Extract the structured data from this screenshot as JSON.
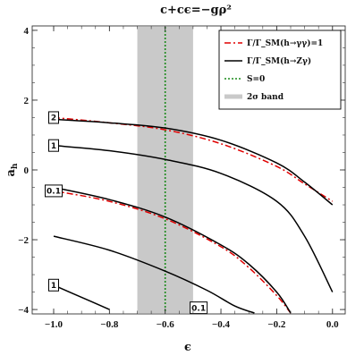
{
  "chart_data": {
    "type": "line",
    "title": "c+cϵ=−gρ²",
    "xlabel": "ϵ",
    "ylabel": "a_h",
    "xlim": [
      -1.0,
      0.02
    ],
    "ylim": [
      -4.1,
      4.1
    ],
    "xticks": [
      -1.0,
      -0.8,
      -0.6,
      -0.4,
      -0.2,
      0.0
    ],
    "xtick_labels": [
      "−1.0",
      "−0.8",
      "−0.6",
      "−0.4",
      "−0.2",
      "0.0"
    ],
    "yticks": [
      -4,
      -2,
      0,
      2,
      4
    ],
    "ytick_labels": [
      "−4",
      "−2",
      "0",
      "2",
      "4"
    ],
    "band": {
      "x0": -0.7,
      "x1": -0.5,
      "color": "#c9c9c9"
    },
    "vertical_line": {
      "x": -0.6,
      "color": "#1a8a1a",
      "style": "dotted"
    },
    "legend": {
      "placement": "top-right",
      "entries": [
        {
          "label": "Γ/Γ_SM(h→γγ)=1",
          "style": "dashdot",
          "color": "#e00000"
        },
        {
          "label": "Γ/Γ_SM(h→Zγ)",
          "style": "solid",
          "color": "#000000"
        },
        {
          "label": "S=0",
          "style": "dotted",
          "color": "#1a8a1a"
        },
        {
          "label": "2σ band",
          "style": "band",
          "color": "#c9c9c9"
        }
      ]
    },
    "series": [
      {
        "style": "dashdot",
        "color": "#e00000",
        "x": [
          -1.0,
          -0.8,
          -0.6,
          -0.4,
          -0.2,
          -0.1,
          0.0
        ],
        "y": [
          1.5,
          1.35,
          1.15,
          0.75,
          0.1,
          -0.4,
          -0.9
        ]
      },
      {
        "style": "dashdot",
        "color": "#e00000",
        "x": [
          -1.0,
          -0.8,
          -0.6,
          -0.4,
          -0.3,
          -0.2,
          -0.15
        ],
        "y": [
          -0.6,
          -0.9,
          -1.4,
          -2.2,
          -2.8,
          -3.6,
          -4.1
        ]
      },
      {
        "style": "solid",
        "color": "#000000",
        "x": [
          -1.0,
          -0.8,
          -0.6,
          -0.4,
          -0.2,
          -0.1,
          0.0
        ],
        "y": [
          1.45,
          1.35,
          1.2,
          0.85,
          0.2,
          -0.35,
          -1.0
        ]
      },
      {
        "style": "solid",
        "color": "#000000",
        "x": [
          -1.0,
          -0.8,
          -0.6,
          -0.4,
          -0.2,
          -0.1,
          0.0
        ],
        "y": [
          0.7,
          0.55,
          0.3,
          -0.1,
          -0.9,
          -1.9,
          -3.5
        ]
      },
      {
        "style": "solid",
        "color": "#000000",
        "x": [
          -1.0,
          -0.8,
          -0.6,
          -0.4,
          -0.3,
          -0.2,
          -0.15
        ],
        "y": [
          -0.5,
          -0.85,
          -1.35,
          -2.15,
          -2.7,
          -3.5,
          -4.1
        ]
      },
      {
        "style": "solid",
        "color": "#000000",
        "x": [
          -1.0,
          -0.8,
          -0.6,
          -0.45,
          -0.35,
          -0.28
        ],
        "y": [
          -1.9,
          -2.3,
          -2.9,
          -3.45,
          -3.9,
          -4.1
        ]
      },
      {
        "style": "solid",
        "color": "#000000",
        "x": [
          -1.0,
          -0.9,
          -0.8
        ],
        "y": [
          -3.3,
          -3.65,
          -4.0
        ]
      }
    ],
    "contour_labels": [
      {
        "text": "2",
        "x": -1.0,
        "y": 1.5
      },
      {
        "text": "1",
        "x": -1.0,
        "y": 0.7
      },
      {
        "text": "0.1",
        "x": -1.0,
        "y": -0.6
      },
      {
        "text": "1",
        "x": -1.0,
        "y": -3.3
      },
      {
        "text": "0.1",
        "x": -0.48,
        "y": -3.95
      }
    ]
  }
}
